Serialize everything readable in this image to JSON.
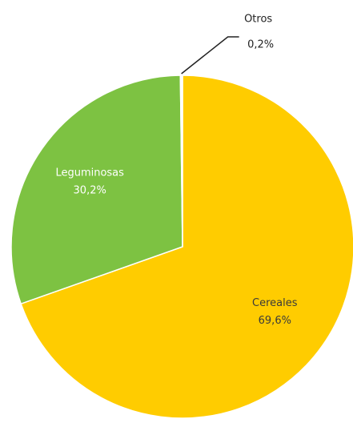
{
  "chart_data": {
    "type": "pie",
    "categories": [
      "Cereales",
      "Leguminosas",
      "Otros"
    ],
    "values": [
      69.6,
      30.2,
      0.2
    ],
    "value_labels": [
      "69,6%",
      "30,2%",
      "0,2%"
    ],
    "colors": [
      "#ffcc00",
      "#7dc242",
      "#ffffff"
    ]
  }
}
